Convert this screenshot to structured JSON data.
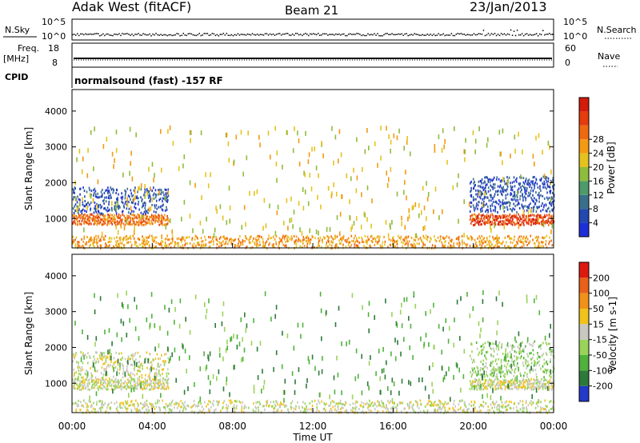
{
  "header": {
    "station": "Adak West (fitACF)",
    "beam": "Beam 21",
    "date": "23/Jan/2013"
  },
  "top_panels": {
    "nsky_label": "N.Sky",
    "nsky_ticks": [
      "10^5",
      "10^0"
    ],
    "nsearch_label": "N.Search",
    "nsearch_ticks": [
      "10^5",
      "10^0"
    ],
    "freq_label": "Freq.",
    "freq_unit": "[MHz]",
    "freq_ticks": [
      "18",
      "8"
    ],
    "nave_label": "Nave",
    "nave_ticks": [
      "60",
      "0"
    ],
    "cpid_label": "CPID",
    "cpid_text": "normalsound (fast) -157 RF"
  },
  "chart_data": [
    {
      "type": "heatmap",
      "name": "power",
      "ylabel": "Slant Range [km]",
      "xlabel": "",
      "ylim": [
        180,
        4600
      ],
      "xlim": [
        0,
        24
      ],
      "yticks": [
        "1000",
        "2000",
        "3000",
        "4000"
      ],
      "colorbar_label": "Power [dB]",
      "colorbar_ticks": [
        "4",
        "8",
        "12",
        "16",
        "20",
        "24",
        "28"
      ],
      "colorbar_colors": [
        "#1f2fd8",
        "#2348b0",
        "#3a6f8a",
        "#4f9a6a",
        "#8fbc3c",
        "#e6c21f",
        "#f39a12",
        "#ee6a10",
        "#e53b0d",
        "#d41a0a"
      ],
      "regions": [
        {
          "t0": 0.0,
          "t1": 4.8,
          "r0": 850,
          "r1": 1150,
          "color_idx": 7,
          "density": 0.9
        },
        {
          "t0": 0.0,
          "t1": 4.8,
          "r0": 1150,
          "r1": 1900,
          "color_idx": 1,
          "density": 0.35
        },
        {
          "t0": 19.8,
          "t1": 24.0,
          "r0": 850,
          "r1": 1150,
          "color_idx": 8,
          "density": 0.95
        },
        {
          "t0": 19.8,
          "t1": 24.0,
          "r0": 1200,
          "r1": 2200,
          "color_idx": 1,
          "density": 0.4
        },
        {
          "t0": 0.0,
          "t1": 24.0,
          "r0": 200,
          "r1": 550,
          "color_idx": 6,
          "density": 0.45
        },
        {
          "t0": 0.0,
          "t1": 24.0,
          "r0": 550,
          "r1": 3600,
          "color_idx": 5,
          "density": 0.02
        }
      ]
    },
    {
      "type": "heatmap",
      "name": "velocity",
      "ylabel": "Slant Range [km]",
      "xlabel": "Time UT",
      "ylim": [
        180,
        4600
      ],
      "xlim": [
        0,
        24
      ],
      "yticks": [
        "1000",
        "2000",
        "3000",
        "4000"
      ],
      "xticks": [
        "00:00",
        "04:00",
        "08:00",
        "12:00",
        "16:00",
        "20:00",
        "00:00"
      ],
      "colorbar_label": "Velocity [m s-1]",
      "colorbar_ticks": [
        "200",
        "100",
        "50",
        "15",
        "-15",
        "-50",
        "-100",
        "-200"
      ],
      "colorbar_colors": [
        "#2339c8",
        "#2e7a3a",
        "#4fb23c",
        "#9ad35a",
        "#c8c8c0",
        "#f2c21c",
        "#f0921a",
        "#e9601a",
        "#dd1a10"
      ],
      "regions": [
        {
          "t0": 0.0,
          "t1": 4.8,
          "r0": 850,
          "r1": 1150,
          "color_idx": 4,
          "density": 0.85
        },
        {
          "t0": 0.0,
          "t1": 4.8,
          "r0": 1150,
          "r1": 1900,
          "color_idx": 4,
          "density": 0.3
        },
        {
          "t0": 19.8,
          "t1": 24.0,
          "r0": 850,
          "r1": 1150,
          "color_idx": 4,
          "density": 0.9
        },
        {
          "t0": 19.8,
          "t1": 24.0,
          "r0": 1200,
          "r1": 2200,
          "color_idx": 3,
          "density": 0.3
        },
        {
          "t0": 0.0,
          "t1": 24.0,
          "r0": 200,
          "r1": 550,
          "color_idx": 4,
          "density": 0.35
        },
        {
          "t0": 0.0,
          "t1": 24.0,
          "r0": 550,
          "r1": 3600,
          "color_idx": 2,
          "density": 0.02
        }
      ]
    }
  ]
}
